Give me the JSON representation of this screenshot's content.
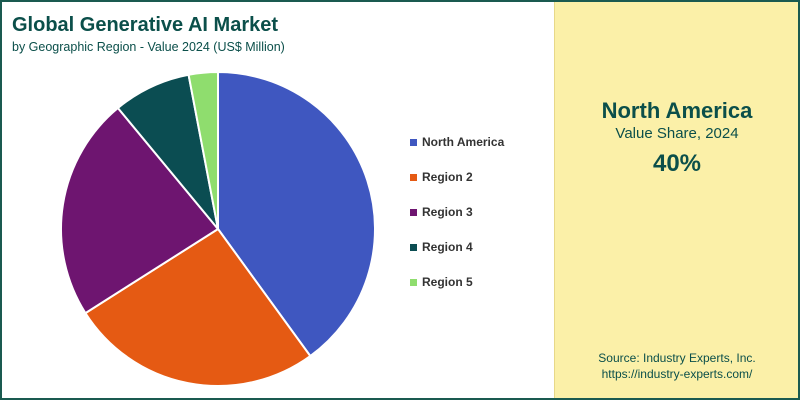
{
  "header": {
    "title": "Global Generative AI Market",
    "subtitle": "by Geographic Region - Value 2024 (US$ Million)"
  },
  "highlight": {
    "region": "North America",
    "metric": "Value Share, 2024",
    "value": "40%"
  },
  "source": {
    "line1": "Source: Industry Experts, Inc.",
    "line2": "https://industry-experts.com/"
  },
  "colors": {
    "accent": "#0b4f4a",
    "panel_background": "#fbf0a8",
    "border": "#1a5a50"
  },
  "chart_data": {
    "type": "pie",
    "categories": [
      "North America",
      "Region 2",
      "Region 3",
      "Region 4",
      "Region 5"
    ],
    "values": [
      40,
      26,
      23,
      8,
      3
    ],
    "colors": [
      "#3f57c0",
      "#e55a13",
      "#6e1570",
      "#0b4d52",
      "#8fdd6e"
    ],
    "start_angle_deg": 0,
    "legend": "right"
  }
}
